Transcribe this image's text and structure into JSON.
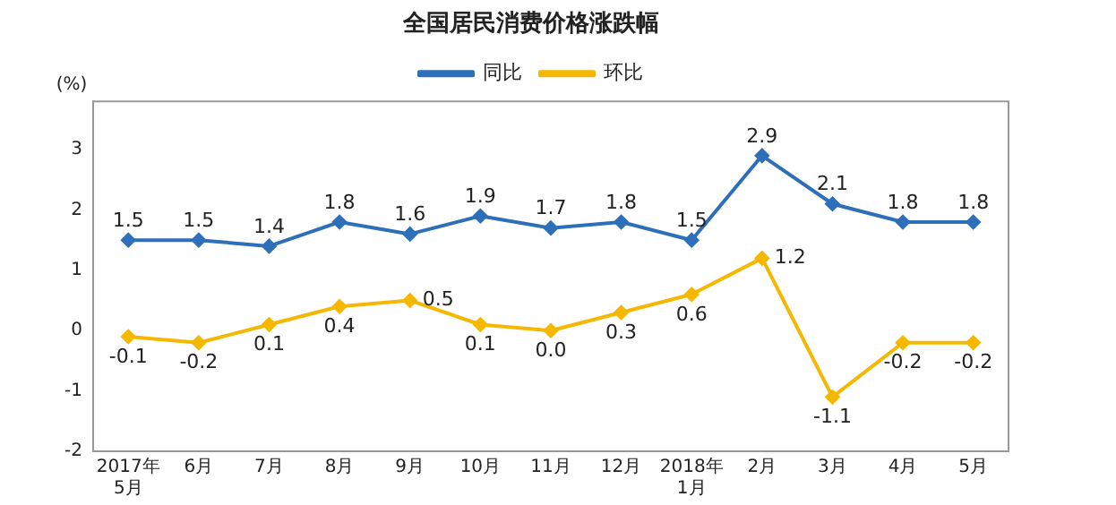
{
  "chart_data": {
    "type": "line",
    "title": "全国居民消费价格涨跌幅",
    "ylabel": "(%)",
    "categories": [
      "2017年\n5月",
      "6月",
      "7月",
      "8月",
      "9月",
      "10月",
      "11月",
      "12月",
      "2018年\n1月",
      "2月",
      "3月",
      "4月",
      "5月"
    ],
    "series": [
      {
        "name": "同比",
        "color": "#2e6fba",
        "values": [
          1.5,
          1.5,
          1.4,
          1.8,
          1.6,
          1.9,
          1.7,
          1.8,
          1.5,
          2.9,
          2.1,
          1.8,
          1.8
        ],
        "value_labels": [
          "1.5",
          "1.5",
          "1.4",
          "1.8",
          "1.6",
          "1.9",
          "1.7",
          "1.8",
          "1.5",
          "2.9",
          "2.1",
          "1.8",
          "1.8"
        ]
      },
      {
        "name": "环比",
        "color": "#f5b800",
        "values": [
          -0.1,
          -0.2,
          0.1,
          0.4,
          0.5,
          0.1,
          0.0,
          0.3,
          0.6,
          1.2,
          -1.1,
          -0.2,
          -0.2
        ],
        "value_labels": [
          "-0.1",
          "-0.2",
          "0.1",
          "0.4",
          "0.5",
          "0.1",
          "0.0",
          "0.3",
          "0.6",
          "1.2",
          "-1.1",
          "-0.2",
          "-0.2"
        ]
      }
    ],
    "ylim": [
      -2,
      3.8
    ],
    "yticks": [
      -2,
      -1,
      0,
      1,
      2,
      3
    ],
    "grid": false,
    "legend": "top",
    "marker": "diamond",
    "line_style": "solid"
  }
}
